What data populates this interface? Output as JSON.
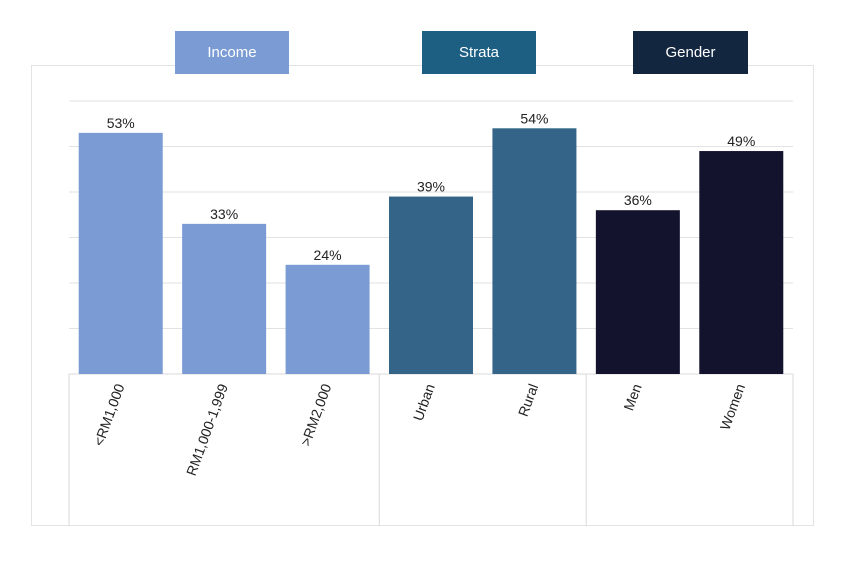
{
  "legend": [
    {
      "label": "Income",
      "color": "#7a9bd4"
    },
    {
      "label": "Strata",
      "color": "#1d5f82"
    },
    {
      "label": "Gender",
      "color": "#132640"
    }
  ],
  "chart_data": {
    "type": "bar",
    "categories": [
      "<RM1,000",
      "RM1,000-1,999",
      ">RM2,000",
      "Urban",
      "Rural",
      "Men",
      "Women"
    ],
    "values": [
      53,
      33,
      24,
      39,
      54,
      36,
      49
    ],
    "value_labels": [
      "53%",
      "33%",
      "24%",
      "39%",
      "54%",
      "36%",
      "49%"
    ],
    "groups": [
      {
        "name": "Income",
        "categories": [
          "<RM1,000",
          "RM1,000-1,999",
          ">RM2,000"
        ]
      },
      {
        "name": "Strata",
        "categories": [
          "Urban",
          "Rural"
        ]
      },
      {
        "name": "Gender",
        "categories": [
          "Men",
          "Women"
        ]
      }
    ],
    "bar_colors": [
      "#7a9bd4",
      "#7a9bd4",
      "#7a9bd4",
      "#346589",
      "#346589",
      "#13132e",
      "#13132e"
    ],
    "ylim": [
      0,
      60
    ],
    "grid": true,
    "legend_position": "top"
  }
}
